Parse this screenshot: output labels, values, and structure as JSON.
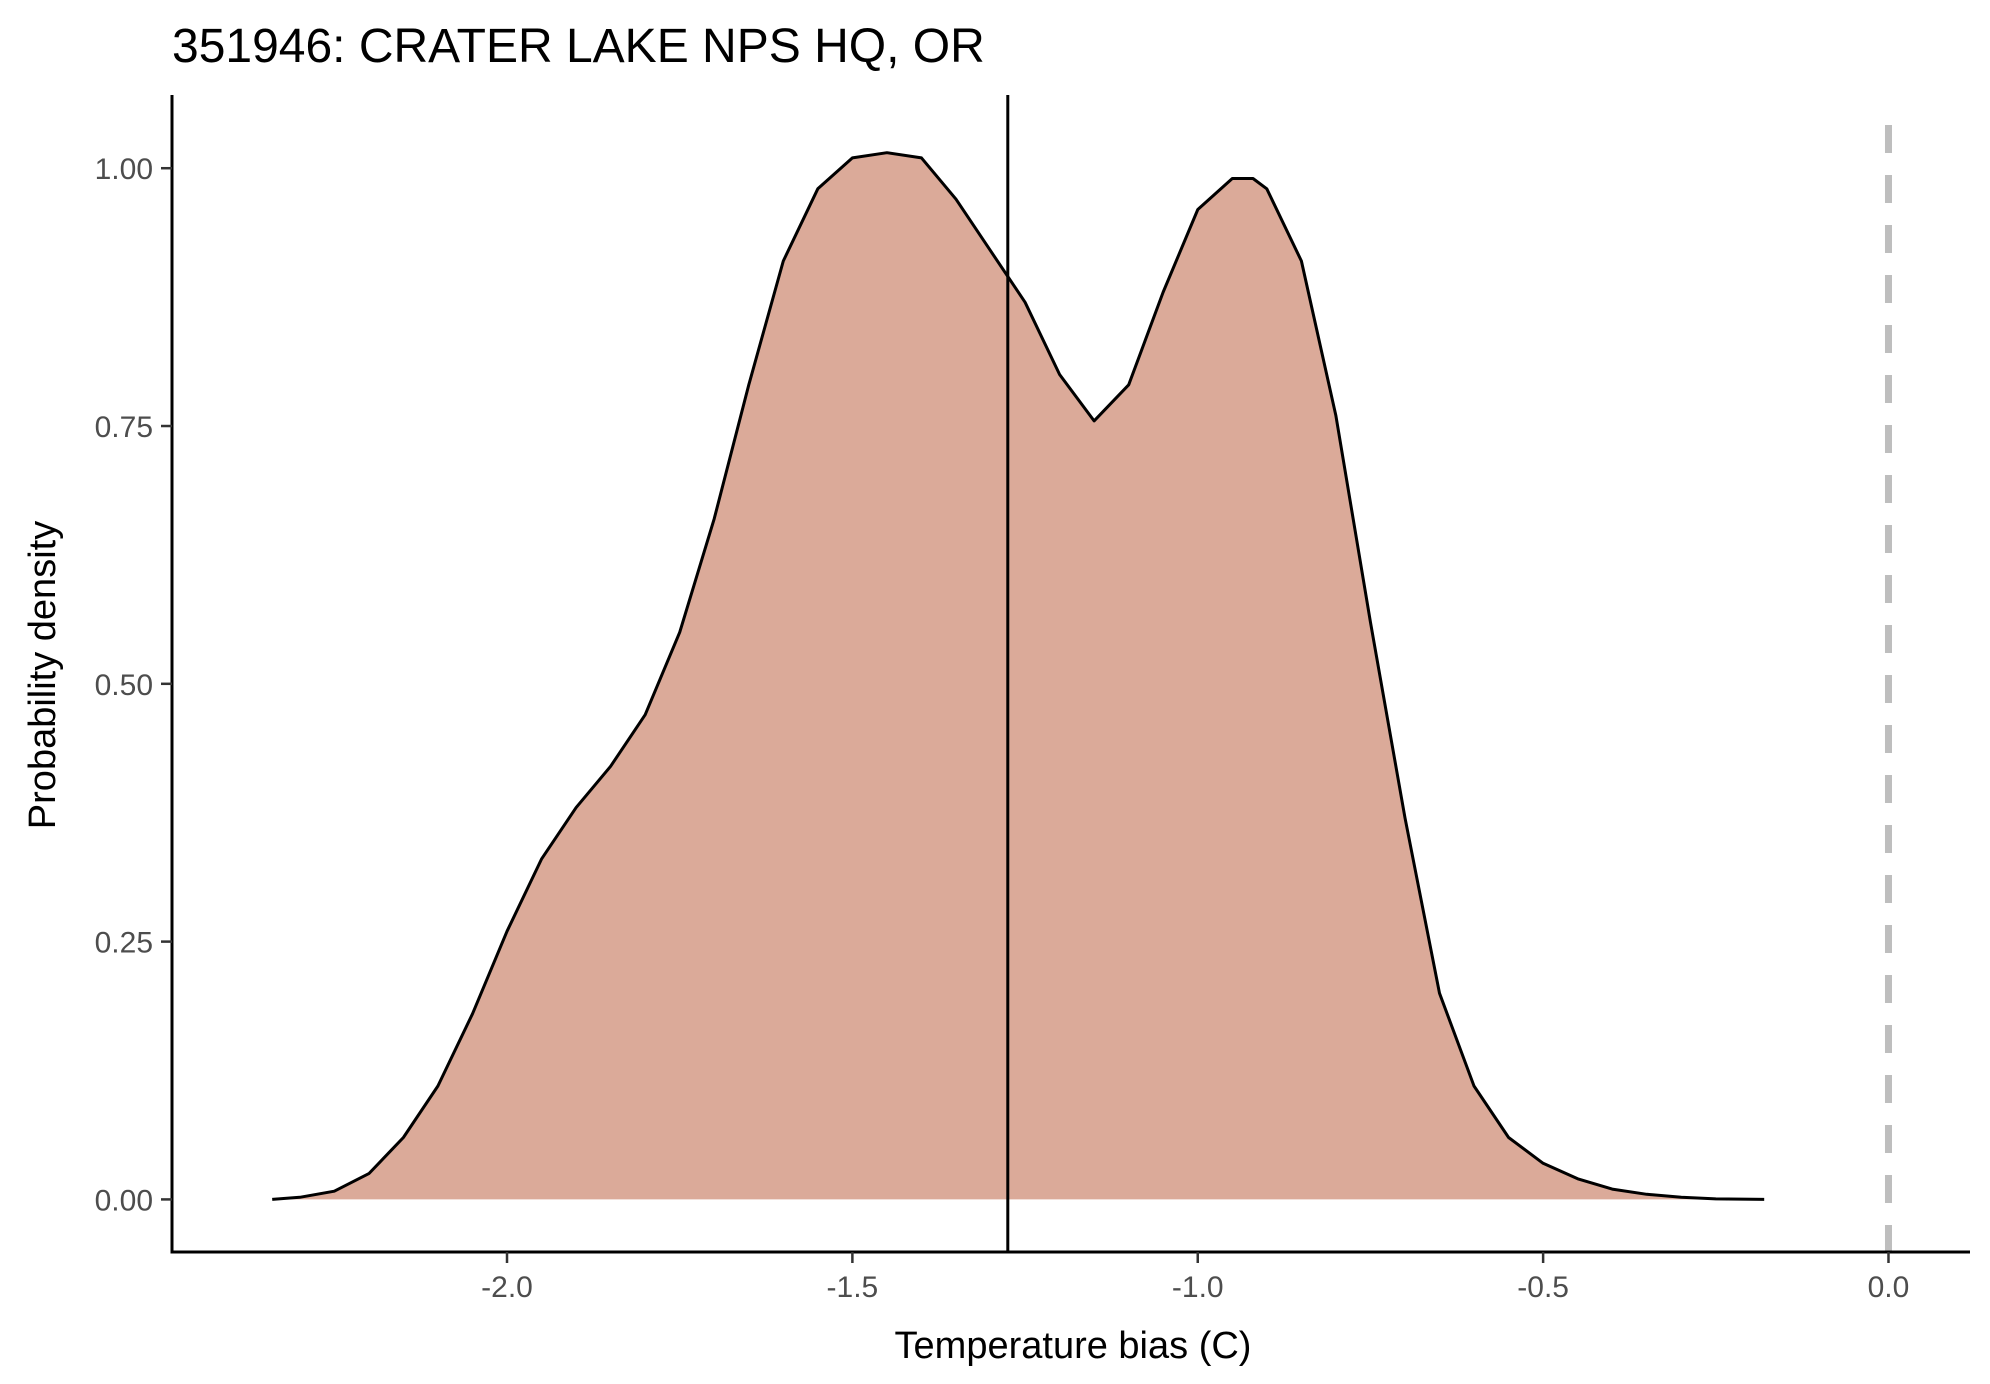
{
  "chart_data": {
    "type": "area",
    "title": "351946: CRATER LAKE NPS HQ, OR",
    "xlabel": "Temperature bias (C)",
    "ylabel": "Probability density",
    "xlim": [
      -2.485,
      0.118
    ],
    "ylim": [
      -0.051,
      1.071
    ],
    "x_ticks": [
      -2.0,
      -1.5,
      -1.0,
      -0.5,
      0.0
    ],
    "x_tick_labels": [
      "-2.0",
      "-1.5",
      "-1.0",
      "-0.5",
      "0.0"
    ],
    "y_ticks": [
      0.0,
      0.25,
      0.5,
      0.75,
      1.0
    ],
    "y_tick_labels": [
      "0.00",
      "0.25",
      "0.50",
      "0.75",
      "1.00"
    ],
    "grid": false,
    "series": [
      {
        "x": [
          -2.34,
          -2.3,
          -2.25,
          -2.2,
          -2.15,
          -2.1,
          -2.05,
          -2.0,
          -1.95,
          -1.9,
          -1.85,
          -1.8,
          -1.75,
          -1.7,
          -1.65,
          -1.6,
          -1.55,
          -1.5,
          -1.45,
          -1.4,
          -1.35,
          -1.3,
          -1.25,
          -1.2,
          -1.15,
          -1.1,
          -1.05,
          -1.0,
          -0.95,
          -0.92,
          -0.9,
          -0.85,
          -0.8,
          -0.75,
          -0.7,
          -0.65,
          -0.6,
          -0.55,
          -0.5,
          -0.45,
          -0.4,
          -0.35,
          -0.3,
          -0.25,
          -0.18
        ],
        "y": [
          0.0,
          0.002,
          0.008,
          0.025,
          0.06,
          0.11,
          0.18,
          0.26,
          0.33,
          0.38,
          0.42,
          0.47,
          0.55,
          0.66,
          0.79,
          0.91,
          0.98,
          1.01,
          1.015,
          1.01,
          0.97,
          0.92,
          0.87,
          0.8,
          0.755,
          0.79,
          0.88,
          0.96,
          0.99,
          0.99,
          0.98,
          0.91,
          0.76,
          0.56,
          0.37,
          0.2,
          0.11,
          0.06,
          0.035,
          0.02,
          0.01,
          0.005,
          0.002,
          0.0005,
          0.0
        ],
        "fill": "#dbaa99",
        "line": "#000000"
      }
    ],
    "reference_lines": [
      {
        "axis": "x",
        "value": -1.275,
        "style": "solid",
        "color": "#000000"
      },
      {
        "axis": "x",
        "value": 0.0,
        "style": "dashed",
        "color": "#bebebe"
      }
    ]
  }
}
